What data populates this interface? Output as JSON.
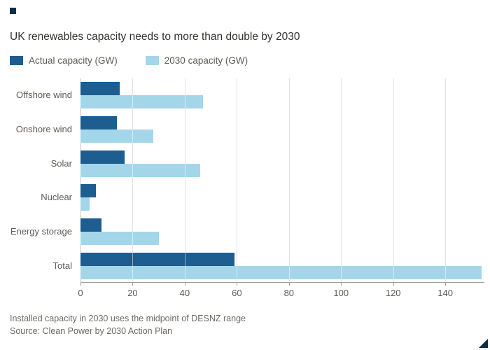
{
  "title": "UK renewables capacity needs to more than double by 2030",
  "brand": {
    "square_color": "#0f2e46",
    "triangle_color": "#0f2e46"
  },
  "chart_data": {
    "type": "bar",
    "orientation": "horizontal",
    "title": "UK renewables capacity needs to more than double by 2030",
    "categories": [
      "Offshore wind",
      "Onshore wind",
      "Solar",
      "Nuclear",
      "Energy storage",
      "Total"
    ],
    "series": [
      {
        "name": "Actual capacity (GW)",
        "color": "#1d5d90",
        "values": [
          15,
          14,
          17,
          6,
          8,
          59
        ]
      },
      {
        "name": "2030 capacity (GW)",
        "color": "#a4d6ea",
        "values": [
          47,
          28,
          46,
          3.5,
          30,
          154
        ]
      }
    ],
    "xlim": [
      0,
      155
    ],
    "xticks": [
      0,
      20,
      40,
      60,
      80,
      100,
      120,
      140
    ],
    "grid": true,
    "legend_position": "top"
  },
  "footnote": "Installed capacity in 2030 uses the midpoint of DESNZ range",
  "source": "Source: Clean Power by 2030 Action Plan"
}
